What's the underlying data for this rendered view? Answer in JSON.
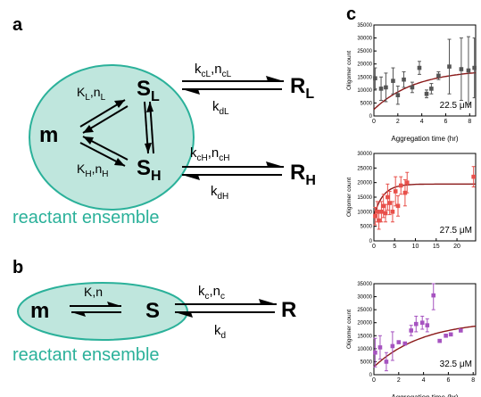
{
  "figure": {
    "panel_a": {
      "label": "a",
      "species": {
        "monomer": "m",
        "sL": "S",
        "sL_sub": "L",
        "sH": "S",
        "sH_sub": "H",
        "rL": "R",
        "rL_sub": "L",
        "rH": "R",
        "rH_sub": "H"
      },
      "rates": {
        "KL_k": "K",
        "KL_ksub": "L",
        "KL_n": "n",
        "KL_nsub": "L",
        "KH_k": "K",
        "KH_ksub": "H",
        "KH_n": "n",
        "KH_nsub": "H",
        "kcL_k": "k",
        "kcL_ksub": "cL",
        "kcL_n": "n",
        "kcL_nsub": "cL",
        "kdL_k": "k",
        "kdL_ksub": "dL",
        "kcH_k": "k",
        "kcH_ksub": "cH",
        "kcH_n": "n",
        "kcH_nsub": "cH",
        "kdH_k": "k",
        "kdH_ksub": "dH"
      },
      "ensemble_label": "reactant ensemble"
    },
    "panel_b": {
      "label": "b",
      "species": {
        "monomer": "m",
        "s": "S",
        "r": "R"
      },
      "rates": {
        "K_label": "K,n",
        "kc_k": "k",
        "kc_ksub": "c",
        "kc_n": "n",
        "kc_nsub": "c",
        "kd_k": "k",
        "kd_ksub": "d"
      },
      "ensemble_label": "reactant ensemble"
    },
    "panel_c": {
      "label": "c"
    },
    "colors": {
      "ellipse_fill": "#bfe6dd",
      "ellipse_stroke": "#2bb19a",
      "ensemble_text": "#2bb19a",
      "fit_line": "#8b1a1a"
    }
  },
  "chart_data": [
    {
      "type": "scatter",
      "ylabel": "Oligomer count",
      "xlabel": "Aggregation time (hr)",
      "annotation": "22.5 μM",
      "color": "#555555",
      "xlim": [
        0,
        8.5
      ],
      "ylim": [
        0,
        35000
      ],
      "xticks": [
        0,
        2,
        4,
        6,
        8
      ],
      "yticks": [
        0,
        5000,
        10000,
        15000,
        20000,
        25000,
        30000,
        35000
      ],
      "yticklabels": [
        "0",
        "5000",
        "10000",
        "15000",
        "20000",
        "25000",
        "30000",
        "35000"
      ],
      "points": [
        {
          "x": 0.1,
          "y": 14500,
          "err": 4000
        },
        {
          "x": 0.6,
          "y": 10500,
          "err": 4500
        },
        {
          "x": 1.0,
          "y": 11000,
          "err": 5500
        },
        {
          "x": 1.6,
          "y": 13500,
          "err": 5000
        },
        {
          "x": 2.0,
          "y": 8000,
          "err": 3500
        },
        {
          "x": 2.5,
          "y": 14000,
          "err": 3000
        },
        {
          "x": 3.2,
          "y": 11000,
          "err": 2000
        },
        {
          "x": 3.8,
          "y": 18500,
          "err": 2500
        },
        {
          "x": 4.4,
          "y": 8500,
          "err": 1500
        },
        {
          "x": 4.8,
          "y": 10500,
          "err": 2000
        },
        {
          "x": 5.4,
          "y": 15500,
          "err": 1500
        },
        {
          "x": 6.3,
          "y": 19000,
          "err": 10500
        },
        {
          "x": 7.3,
          "y": 18000,
          "err": 12000
        },
        {
          "x": 7.9,
          "y": 17500,
          "err": 13000
        },
        {
          "x": 8.4,
          "y": 18500,
          "err": 11500
        }
      ],
      "fit": {
        "a": 18000,
        "b": 2500,
        "tau": 3.5
      }
    },
    {
      "type": "scatter",
      "ylabel": "Oligomer count",
      "xlabel": "",
      "annotation": "27.5 μM",
      "color": "#e8504a",
      "xlim": [
        0,
        24.5
      ],
      "ylim": [
        0,
        30000
      ],
      "xticks": [
        0,
        5,
        10,
        15,
        20
      ],
      "yticks": [
        0,
        5000,
        10000,
        15000,
        20000,
        25000,
        30000
      ],
      "yticklabels": [
        "0",
        "5000",
        "10000",
        "15000",
        "20000",
        "25000",
        "30000"
      ],
      "points": [
        {
          "x": 0.3,
          "y": 8500,
          "err": 3000
        },
        {
          "x": 0.8,
          "y": 10000,
          "err": 3500
        },
        {
          "x": 1.2,
          "y": 7000,
          "err": 3000
        },
        {
          "x": 1.8,
          "y": 10000,
          "err": 3500
        },
        {
          "x": 2.3,
          "y": 12000,
          "err": 4000
        },
        {
          "x": 2.8,
          "y": 9500,
          "err": 3000
        },
        {
          "x": 3.3,
          "y": 15000,
          "err": 4500
        },
        {
          "x": 3.8,
          "y": 13000,
          "err": 4000
        },
        {
          "x": 4.5,
          "y": 10000,
          "err": 3500
        },
        {
          "x": 5.2,
          "y": 17000,
          "err": 5000
        },
        {
          "x": 5.8,
          "y": 12000,
          "err": 3500
        },
        {
          "x": 6.5,
          "y": 19000,
          "err": 3000
        },
        {
          "x": 7.5,
          "y": 16500,
          "err": 4500
        },
        {
          "x": 8.0,
          "y": 20000,
          "err": 3500
        },
        {
          "x": 24.0,
          "y": 22000,
          "err": 3500
        }
      ],
      "fit": {
        "a": 19500,
        "b": 8500,
        "tau": 2.2
      }
    },
    {
      "type": "scatter",
      "ylabel": "Oligomer count",
      "xlabel": "Aggregation time (hr)",
      "annotation": "32.5 μM",
      "color": "#a653c0",
      "xlim": [
        0,
        8.2
      ],
      "ylim": [
        0,
        35000
      ],
      "xticks": [
        0,
        2,
        4,
        6,
        8
      ],
      "yticks": [
        0,
        5000,
        10000,
        15000,
        20000,
        25000,
        30000,
        35000
      ],
      "yticklabels": [
        "0",
        "5000",
        "10000",
        "15000",
        "20000",
        "25000",
        "30000",
        "35000"
      ],
      "points": [
        {
          "x": 0.1,
          "y": 8500,
          "err": 5500
        },
        {
          "x": 0.5,
          "y": 10500,
          "err": 4500
        },
        {
          "x": 1.0,
          "y": 5000,
          "err": 3500
        },
        {
          "x": 1.5,
          "y": 11000,
          "err": 5500
        },
        {
          "x": 2.0,
          "y": 12500,
          "err": 0
        },
        {
          "x": 2.5,
          "y": 12000,
          "err": 0
        },
        {
          "x": 3.0,
          "y": 17000,
          "err": 2000
        },
        {
          "x": 3.4,
          "y": 19500,
          "err": 3000
        },
        {
          "x": 3.9,
          "y": 20000,
          "err": 2500
        },
        {
          "x": 4.3,
          "y": 19000,
          "err": 2500
        },
        {
          "x": 4.8,
          "y": 30500,
          "err": 5500
        },
        {
          "x": 5.3,
          "y": 13000,
          "err": 0
        },
        {
          "x": 5.8,
          "y": 15000,
          "err": 0
        },
        {
          "x": 6.2,
          "y": 15500,
          "err": 0
        },
        {
          "x": 7.0,
          "y": 17000,
          "err": 0
        }
      ],
      "fit": {
        "a": 21000,
        "b": 3000,
        "tau": 4.0
      }
    }
  ]
}
